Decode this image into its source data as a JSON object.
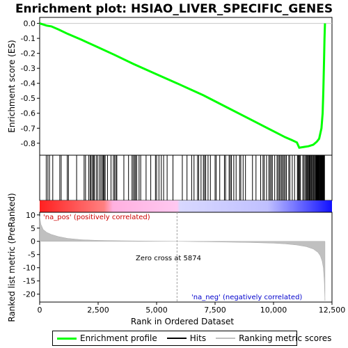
{
  "chart_data": {
    "type": "line",
    "title": "Enrichment plot: HSIAO_LIVER_SPECIFIC_GENES",
    "xlabel": "Rank in Ordered Dataset",
    "ylabel_top": "Enrichment score (ES)",
    "ylabel_bottom": "Ranked list metric (PreRanked)",
    "xlim": [
      0,
      12500
    ],
    "xticks": [
      0,
      2500,
      5000,
      7500,
      10000,
      12500
    ],
    "xtick_labels": [
      "0",
      "2,500",
      "5,000",
      "7,500",
      "10,000",
      "12,500"
    ],
    "es_ylim": [
      -0.88,
      0.04
    ],
    "es_yticks": [
      0.0,
      -0.1,
      -0.2,
      -0.3,
      -0.4,
      -0.5,
      -0.6,
      -0.7,
      -0.8
    ],
    "es_ytick_labels": [
      "0.0",
      "-0.1",
      "-0.2",
      "-0.3",
      "-0.4",
      "-0.5",
      "-0.6",
      "-0.7",
      "-0.8"
    ],
    "metric_ylim": [
      -23,
      11
    ],
    "metric_yticks": [
      10,
      5,
      0,
      -5,
      -10,
      -15,
      -20
    ],
    "metric_ytick_labels": [
      "10",
      "5",
      "0",
      "-5",
      "-10",
      "-15",
      "-20"
    ],
    "total_rank": 12200,
    "zero_cross": 5874,
    "annotations": {
      "pos_label": "'na_pos' (positively correlated)",
      "neg_label": "'na_neg' (negatively correlated)",
      "zero_cross_label": "Zero cross at 5874"
    },
    "colors": {
      "es_line": "#00ff00",
      "hits": "#000000",
      "metric_fill": "#c0c0c0",
      "pos_text": "#cc0000",
      "neg_text": "#0000cc",
      "zero_line": "#a0a0a0"
    },
    "es_curve": {
      "x": [
        0,
        300,
        500,
        800,
        1200,
        1800,
        2500,
        3200,
        4000,
        5000,
        5874,
        7000,
        8000,
        9000,
        10000,
        10500,
        10800,
        11000,
        11100,
        11300,
        11500,
        11700,
        11850,
        11950,
        12050,
        12100,
        12130,
        12160,
        12180,
        12200
      ],
      "y": [
        0.0,
        -0.015,
        -0.02,
        -0.04,
        -0.07,
        -0.11,
        -0.16,
        -0.21,
        -0.27,
        -0.34,
        -0.4,
        -0.48,
        -0.56,
        -0.64,
        -0.72,
        -0.76,
        -0.78,
        -0.795,
        -0.83,
        -0.825,
        -0.82,
        -0.81,
        -0.79,
        -0.77,
        -0.7,
        -0.6,
        -0.45,
        -0.25,
        -0.1,
        0.0
      ]
    },
    "hits_positions": [
      280,
      350,
      420,
      560,
      860,
      920,
      1180,
      1230,
      1580,
      1900,
      1960,
      2100,
      2160,
      2200,
      2260,
      2300,
      2340,
      2420,
      2480,
      2560,
      2620,
      2680,
      2720,
      2760,
      2800,
      2900,
      3050,
      3150,
      3200,
      3260,
      3300,
      3600,
      3800,
      3950,
      4000,
      4060,
      4100,
      4150,
      4250,
      4320,
      4550,
      4750,
      4950,
      5000,
      5100,
      5200,
      5300,
      5450,
      5700,
      6100,
      6300,
      6500,
      6600,
      6750,
      6800,
      6900,
      7000,
      7050,
      7100,
      7200,
      7300,
      7500,
      7550,
      7700,
      7900,
      7950,
      8100,
      8150,
      8200,
      8300,
      8400,
      8550,
      8600,
      8700,
      8800,
      9100,
      9250,
      9450,
      9550,
      9600,
      9700,
      9800,
      9850,
      9900,
      9950,
      10050,
      10150,
      10200,
      10250,
      10300,
      10350,
      10400,
      10450,
      10500,
      10550,
      10650,
      10700,
      10800,
      10900,
      11020,
      11050,
      11080,
      11110,
      11150,
      11250,
      11300,
      11350,
      11400,
      11430,
      11460,
      11500,
      11530,
      11560,
      11600,
      11630,
      11660,
      11700,
      11730,
      11760,
      11800,
      11830,
      11860,
      11890,
      11920,
      11950,
      11980,
      12000,
      12020,
      12040,
      12060,
      12080,
      12100,
      12120,
      12140,
      12160,
      12180
    ],
    "metric_curve": {
      "x": [
        0,
        50,
        150,
        300,
        500,
        800,
        1200,
        1800,
        2500,
        3500,
        4500,
        5874,
        7000,
        8000,
        9000,
        10000,
        10500,
        11000,
        11400,
        11700,
        11900,
        12000,
        12080,
        12130,
        12170,
        12200
      ],
      "y": [
        9.5,
        6.5,
        4.5,
        3.4,
        2.6,
        1.8,
        1.1,
        0.6,
        0.35,
        0.2,
        0.1,
        0.0,
        -0.15,
        -0.3,
        -0.45,
        -0.7,
        -0.95,
        -1.4,
        -2.0,
        -2.9,
        -4.2,
        -5.5,
        -7.5,
        -10,
        -15,
        -22.5
      ]
    }
  },
  "legend": {
    "items": [
      {
        "label": "Enrichment profile",
        "kind": "line",
        "color": "#00ff00"
      },
      {
        "label": "Hits",
        "kind": "line",
        "color": "#000000"
      },
      {
        "label": "Ranking metric scores",
        "kind": "line",
        "color": "#c0c0c0"
      }
    ]
  }
}
